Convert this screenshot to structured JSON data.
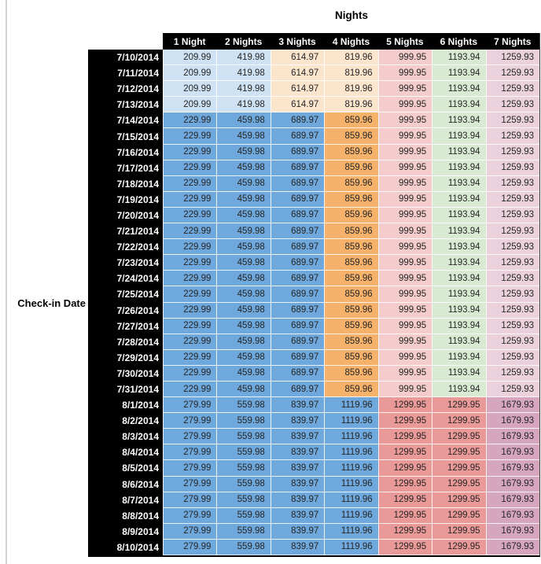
{
  "chart_data": {
    "type": "table",
    "title": "Nights",
    "row_axis_label": "Check-in Date",
    "columns": [
      "1 Night",
      "2 Nights",
      "3 Nights",
      "4 Nights",
      "5 Nights",
      "6 Nights",
      "7 Nights"
    ],
    "band_colors": {
      "jul10_13": [
        "#cfe2f3",
        "#cfe2f3",
        "#fce5cd",
        "#fce5cd",
        "#f4cccc",
        "#d9ead3",
        "#ead1dc"
      ],
      "jul14_31": [
        "#6fa8dc",
        "#6fa8dc",
        "#6fa8dc",
        "#f6b26b",
        "#f4cccc",
        "#d9ead3",
        "#ead1dc"
      ],
      "aug1_10": [
        "#6fa8dc",
        "#6fa8dc",
        "#6fa8dc",
        "#6fa8dc",
        "#ea9999",
        "#ea9999",
        "#d5a6bd"
      ]
    },
    "rows": [
      {
        "date": "7/10/2014",
        "band": "jul10_13",
        "values": [
          "209.99",
          "419.98",
          "614.97",
          "819.96",
          "999.95",
          "1193.94",
          "1259.93"
        ]
      },
      {
        "date": "7/11/2014",
        "band": "jul10_13",
        "values": [
          "209.99",
          "419.98",
          "614.97",
          "819.96",
          "999.95",
          "1193.94",
          "1259.93"
        ]
      },
      {
        "date": "7/12/2014",
        "band": "jul10_13",
        "values": [
          "209.99",
          "419.98",
          "614.97",
          "819.96",
          "999.95",
          "1193.94",
          "1259.93"
        ]
      },
      {
        "date": "7/13/2014",
        "band": "jul10_13",
        "values": [
          "209.99",
          "419.98",
          "614.97",
          "819.96",
          "999.95",
          "1193.94",
          "1259.93"
        ]
      },
      {
        "date": "7/14/2014",
        "band": "jul14_31",
        "values": [
          "229.99",
          "459.98",
          "689.97",
          "859.96",
          "999.95",
          "1193.94",
          "1259.93"
        ]
      },
      {
        "date": "7/15/2014",
        "band": "jul14_31",
        "values": [
          "229.99",
          "459.98",
          "689.97",
          "859.96",
          "999.95",
          "1193.94",
          "1259.93"
        ]
      },
      {
        "date": "7/16/2014",
        "band": "jul14_31",
        "values": [
          "229.99",
          "459.98",
          "689.97",
          "859.96",
          "999.95",
          "1193.94",
          "1259.93"
        ]
      },
      {
        "date": "7/17/2014",
        "band": "jul14_31",
        "values": [
          "229.99",
          "459.98",
          "689.97",
          "859.96",
          "999.95",
          "1193.94",
          "1259.93"
        ]
      },
      {
        "date": "7/18/2014",
        "band": "jul14_31",
        "values": [
          "229.99",
          "459.98",
          "689.97",
          "859.96",
          "999.95",
          "1193.94",
          "1259.93"
        ]
      },
      {
        "date": "7/19/2014",
        "band": "jul14_31",
        "values": [
          "229.99",
          "459.98",
          "689.97",
          "859.96",
          "999.95",
          "1193.94",
          "1259.93"
        ]
      },
      {
        "date": "7/20/2014",
        "band": "jul14_31",
        "values": [
          "229.99",
          "459.98",
          "689.97",
          "859.96",
          "999.95",
          "1193.94",
          "1259.93"
        ]
      },
      {
        "date": "7/21/2014",
        "band": "jul14_31",
        "values": [
          "229.99",
          "459.98",
          "689.97",
          "859.96",
          "999.95",
          "1193.94",
          "1259.93"
        ]
      },
      {
        "date": "7/22/2014",
        "band": "jul14_31",
        "values": [
          "229.99",
          "459.98",
          "689.97",
          "859.96",
          "999.95",
          "1193.94",
          "1259.93"
        ]
      },
      {
        "date": "7/23/2014",
        "band": "jul14_31",
        "values": [
          "229.99",
          "459.98",
          "689.97",
          "859.96",
          "999.95",
          "1193.94",
          "1259.93"
        ]
      },
      {
        "date": "7/24/2014",
        "band": "jul14_31",
        "values": [
          "229.99",
          "459.98",
          "689.97",
          "859.96",
          "999.95",
          "1193.94",
          "1259.93"
        ]
      },
      {
        "date": "7/25/2014",
        "band": "jul14_31",
        "values": [
          "229.99",
          "459.98",
          "689.97",
          "859.96",
          "999.95",
          "1193.94",
          "1259.93"
        ]
      },
      {
        "date": "7/26/2014",
        "band": "jul14_31",
        "values": [
          "229.99",
          "459.98",
          "689.97",
          "859.96",
          "999.95",
          "1193.94",
          "1259.93"
        ]
      },
      {
        "date": "7/27/2014",
        "band": "jul14_31",
        "values": [
          "229.99",
          "459.98",
          "689.97",
          "859.96",
          "999.95",
          "1193.94",
          "1259.93"
        ]
      },
      {
        "date": "7/28/2014",
        "band": "jul14_31",
        "values": [
          "229.99",
          "459.98",
          "689.97",
          "859.96",
          "999.95",
          "1193.94",
          "1259.93"
        ]
      },
      {
        "date": "7/29/2014",
        "band": "jul14_31",
        "values": [
          "229.99",
          "459.98",
          "689.97",
          "859.96",
          "999.95",
          "1193.94",
          "1259.93"
        ]
      },
      {
        "date": "7/30/2014",
        "band": "jul14_31",
        "values": [
          "229.99",
          "459.98",
          "689.97",
          "859.96",
          "999.95",
          "1193.94",
          "1259.93"
        ]
      },
      {
        "date": "7/31/2014",
        "band": "jul14_31",
        "values": [
          "229.99",
          "459.98",
          "689.97",
          "859.96",
          "999.95",
          "1193.94",
          "1259.93"
        ]
      },
      {
        "date": "8/1/2014",
        "band": "aug1_10",
        "values": [
          "279.99",
          "559.98",
          "839.97",
          "1119.96",
          "1299.95",
          "1299.95",
          "1679.93"
        ]
      },
      {
        "date": "8/2/2014",
        "band": "aug1_10",
        "values": [
          "279.99",
          "559.98",
          "839.97",
          "1119.96",
          "1299.95",
          "1299.95",
          "1679.93"
        ]
      },
      {
        "date": "8/3/2014",
        "band": "aug1_10",
        "values": [
          "279.99",
          "559.98",
          "839.97",
          "1119.96",
          "1299.95",
          "1299.95",
          "1679.93"
        ]
      },
      {
        "date": "8/4/2014",
        "band": "aug1_10",
        "values": [
          "279.99",
          "559.98",
          "839.97",
          "1119.96",
          "1299.95",
          "1299.95",
          "1679.93"
        ]
      },
      {
        "date": "8/5/2014",
        "band": "aug1_10",
        "values": [
          "279.99",
          "559.98",
          "839.97",
          "1119.96",
          "1299.95",
          "1299.95",
          "1679.93"
        ]
      },
      {
        "date": "8/6/2014",
        "band": "aug1_10",
        "values": [
          "279.99",
          "559.98",
          "839.97",
          "1119.96",
          "1299.95",
          "1299.95",
          "1679.93"
        ]
      },
      {
        "date": "8/7/2014",
        "band": "aug1_10",
        "values": [
          "279.99",
          "559.98",
          "839.97",
          "1119.96",
          "1299.95",
          "1299.95",
          "1679.93"
        ]
      },
      {
        "date": "8/8/2014",
        "band": "aug1_10",
        "values": [
          "279.99",
          "559.98",
          "839.97",
          "1119.96",
          "1299.95",
          "1299.95",
          "1679.93"
        ]
      },
      {
        "date": "8/9/2014",
        "band": "aug1_10",
        "values": [
          "279.99",
          "559.98",
          "839.97",
          "1119.96",
          "1299.95",
          "1299.95",
          "1679.93"
        ]
      },
      {
        "date": "8/10/2014",
        "band": "aug1_10",
        "values": [
          "279.99",
          "559.98",
          "839.97",
          "1119.96",
          "1299.95",
          "1299.95",
          "1679.93"
        ]
      }
    ],
    "layout": {
      "header_bg": "#000000",
      "header_text": "#ffffff",
      "value_text": "#262626",
      "grid_line": "#ffffff",
      "outer_border": "#000000",
      "left_rule": "#d4d4d4"
    }
  }
}
